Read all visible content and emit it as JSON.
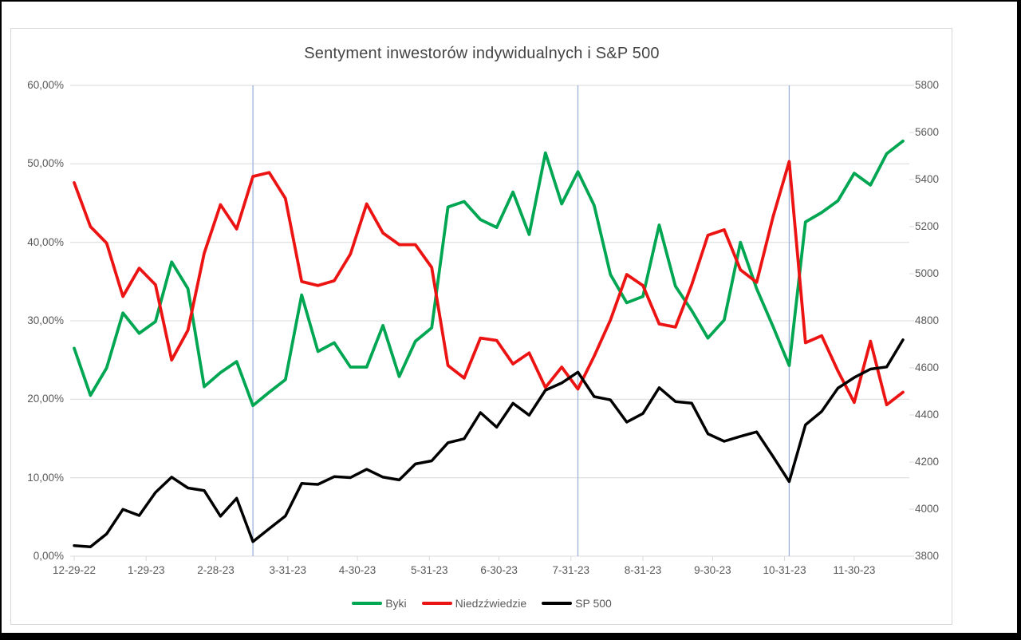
{
  "chart_data": {
    "type": "line",
    "title": "Sentyment inwestorów indywidualnych i S&P 500",
    "grid": "horizontal",
    "legend_position": "bottom",
    "left_axis": {
      "min": 0,
      "max": 60,
      "step": 10,
      "labels": [
        "0,00%",
        "10,00%",
        "20,00%",
        "30,00%",
        "40,00%",
        "50,00%",
        "60,00%"
      ]
    },
    "right_axis": {
      "min": 3800,
      "max": 5800,
      "step": 200,
      "labels": [
        "3800",
        "4000",
        "4200",
        "4400",
        "4600",
        "4800",
        "5000",
        "5200",
        "5400",
        "5600",
        "5800"
      ]
    },
    "x_tick_labels": [
      "12-29-22",
      "1-29-23",
      "2-28-23",
      "3-31-23",
      "4-30-23",
      "5-31-23",
      "6-30-23",
      "7-31-23",
      "8-31-23",
      "9-30-23",
      "10-31-23",
      "11-30-23"
    ],
    "x_tick_day_offsets": [
      0,
      31,
      61,
      92,
      122,
      153,
      183,
      214,
      245,
      275,
      306,
      336
    ],
    "total_days": 357,
    "dates": [
      "12-29-22",
      "1-5-23",
      "1-12-23",
      "1-19-23",
      "1-26-23",
      "2-2-23",
      "2-9-23",
      "2-16-23",
      "2-23-23",
      "3-2-23",
      "3-9-23",
      "3-16-23",
      "3-23-23",
      "3-30-23",
      "4-6-23",
      "4-13-23",
      "4-20-23",
      "4-27-23",
      "5-4-23",
      "5-11-23",
      "5-18-23",
      "5-25-23",
      "6-1-23",
      "6-8-23",
      "6-15-23",
      "6-22-23",
      "6-29-23",
      "7-6-23",
      "7-13-23",
      "7-20-23",
      "7-27-23",
      "8-3-23",
      "8-10-23",
      "8-17-23",
      "8-24-23",
      "8-31-23",
      "9-7-23",
      "9-14-23",
      "9-21-23",
      "9-28-23",
      "10-5-23",
      "10-12-23",
      "10-19-23",
      "10-26-23",
      "11-2-23",
      "11-9-23",
      "11-16-23",
      "11-22-23",
      "11-30-23",
      "12-7-23",
      "12-14-23",
      "12-21-23"
    ],
    "series": [
      {
        "name": "Byki",
        "axis": "left",
        "color": "#00A651",
        "values": [
          26.5,
          20.5,
          24.0,
          31.0,
          28.4,
          29.9,
          37.5,
          34.1,
          21.6,
          23.4,
          24.8,
          19.2,
          20.9,
          22.5,
          33.3,
          26.1,
          27.2,
          24.1,
          24.1,
          29.4,
          22.9,
          27.4,
          29.1,
          44.5,
          45.2,
          42.9,
          41.9,
          46.4,
          41.0,
          51.4,
          44.9,
          49.0,
          44.7,
          35.9,
          32.3,
          33.1,
          42.2,
          34.4,
          31.3,
          27.8,
          30.1,
          40.0,
          34.1,
          29.3,
          24.3,
          42.6,
          43.8,
          45.3,
          48.8,
          47.3,
          51.3,
          52.9
        ]
      },
      {
        "name": "Niedzźwiedzie",
        "axis": "left",
        "color": "#EC1313",
        "values": [
          47.6,
          42.0,
          39.9,
          33.1,
          36.7,
          34.6,
          25.0,
          28.8,
          38.6,
          44.8,
          41.7,
          48.4,
          48.9,
          45.6,
          35.0,
          34.5,
          35.1,
          38.5,
          44.9,
          41.2,
          39.7,
          39.7,
          36.8,
          24.3,
          22.7,
          27.8,
          27.5,
          24.5,
          25.9,
          21.5,
          24.1,
          21.3,
          25.5,
          30.1,
          35.9,
          34.5,
          29.6,
          29.2,
          34.6,
          40.9,
          41.6,
          36.5,
          34.9,
          43.2,
          50.3,
          27.2,
          28.1,
          23.6,
          19.6,
          27.4,
          19.3,
          20.9
        ]
      },
      {
        "name": "SP 500",
        "axis": "right",
        "color": "#000000",
        "values": [
          3845,
          3840,
          3895,
          3999,
          3973,
          4071,
          4136,
          4090,
          4079,
          3970,
          4046,
          3862,
          3917,
          3971,
          4109,
          4105,
          4138,
          4134,
          4169,
          4136,
          4124,
          4192,
          4205,
          4282,
          4299,
          4410,
          4348,
          4450,
          4399,
          4505,
          4536,
          4582,
          4478,
          4464,
          4370,
          4406,
          4516,
          4457,
          4450,
          4320,
          4288,
          4309,
          4328,
          4224,
          4117,
          4358,
          4415,
          4514,
          4559,
          4595,
          4604,
          4719
        ]
      }
    ],
    "vertical_markers": {
      "color": "#9DB3D9",
      "dates": [
        "3-16-23",
        "8-3-23",
        "11-2-23"
      ],
      "indices": [
        11,
        31,
        44
      ]
    },
    "colors": {
      "gridline": "#D9D9D9",
      "axis_text": "#595959",
      "title_text": "#444444"
    }
  }
}
